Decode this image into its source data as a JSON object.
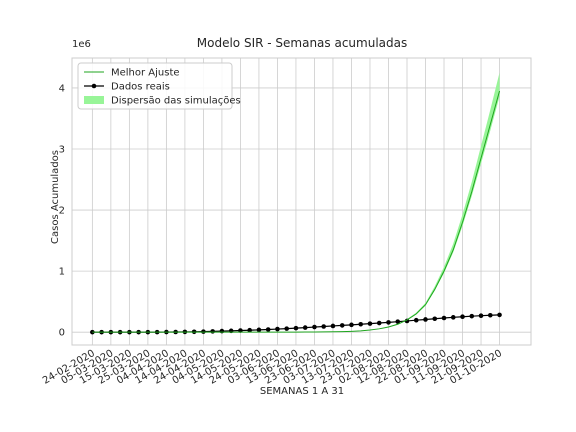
{
  "chart_data": {
    "type": "line",
    "title": "Modelo SIR - Semanas acumuladas",
    "xlabel": "SEMANAS 1 A 31",
    "ylabel": "Casos Acumulados",
    "y_offset_label": "1e6",
    "grid": true,
    "legend": "upper left",
    "xlim": [
      "13-02-2020",
      "18-10-2020"
    ],
    "ylim": [
      -0.21,
      4.49
    ],
    "yticks": [
      0,
      1,
      2,
      3,
      4
    ],
    "xticks": [
      "24-02-2020",
      "05-03-2020",
      "15-03-2020",
      "25-03-2020",
      "04-04-2020",
      "14-04-2020",
      "24-04-2020",
      "04-05-2020",
      "14-05-2020",
      "24-05-2020",
      "03-06-2020",
      "13-06-2020",
      "23-06-2020",
      "03-07-2020",
      "13-07-2020",
      "23-07-2020",
      "02-08-2020",
      "12-08-2020",
      "22-08-2020",
      "01-09-2020",
      "11-09-2020",
      "21-09-2020",
      "01-10-2020"
    ],
    "x": [
      "24-02-2020",
      "29-02-2020",
      "05-03-2020",
      "10-03-2020",
      "15-03-2020",
      "20-03-2020",
      "25-03-2020",
      "30-03-2020",
      "04-04-2020",
      "09-04-2020",
      "14-04-2020",
      "19-04-2020",
      "24-04-2020",
      "29-04-2020",
      "04-05-2020",
      "09-05-2020",
      "14-05-2020",
      "19-05-2020",
      "24-05-2020",
      "29-05-2020",
      "03-06-2020",
      "08-06-2020",
      "13-06-2020",
      "18-06-2020",
      "23-06-2020",
      "28-06-2020",
      "03-07-2020",
      "08-07-2020",
      "13-07-2020",
      "18-07-2020",
      "23-07-2020",
      "28-07-2020",
      "02-08-2020",
      "07-08-2020",
      "12-08-2020",
      "17-08-2020",
      "22-08-2020",
      "27-08-2020",
      "01-09-2020",
      "06-09-2020",
      "11-09-2020",
      "16-09-2020",
      "21-09-2020",
      "26-09-2020",
      "01-10-2020"
    ],
    "series": [
      {
        "name": "Melhor Ajuste",
        "color": "#1fa51f",
        "values": [
          0,
          0,
          0,
          0,
          0,
          0,
          0,
          0,
          0,
          0,
          0,
          0,
          0,
          0,
          0,
          0,
          0,
          0,
          0,
          0,
          0,
          0,
          0.001,
          0.002,
          0.003,
          0.004,
          0.006,
          0.009,
          0.014,
          0.022,
          0.035,
          0.055,
          0.085,
          0.13,
          0.2,
          0.3,
          0.45,
          0.7,
          1.0,
          1.35,
          1.8,
          2.3,
          2.85,
          3.4,
          3.95
        ]
      },
      {
        "name": "Dados reais",
        "color": "#000000",
        "marker": "o",
        "values": [
          0,
          0,
          0,
          0,
          0,
          0,
          0,
          0.001,
          0.002,
          0.003,
          0.004,
          0.006,
          0.009,
          0.013,
          0.018,
          0.022,
          0.027,
          0.032,
          0.038,
          0.044,
          0.051,
          0.058,
          0.066,
          0.075,
          0.084,
          0.093,
          0.102,
          0.111,
          0.12,
          0.13,
          0.14,
          0.15,
          0.16,
          0.172,
          0.184,
          0.196,
          0.208,
          0.22,
          0.232,
          0.243,
          0.253,
          0.262,
          0.27,
          0.277,
          0.283
        ]
      }
    ],
    "band": {
      "name": "Dispersão das simulações",
      "color": "#98f598",
      "lower": [
        0,
        0,
        0,
        0,
        0,
        0,
        0,
        0,
        0,
        0,
        0,
        0,
        0,
        0,
        0,
        0,
        0,
        0,
        0,
        0,
        0,
        0,
        0.001,
        0.002,
        0.003,
        0.004,
        0.006,
        0.009,
        0.014,
        0.021,
        0.034,
        0.053,
        0.082,
        0.125,
        0.193,
        0.29,
        0.435,
        0.68,
        0.97,
        1.31,
        1.74,
        2.23,
        2.76,
        3.3,
        3.86
      ],
      "upper": [
        0,
        0,
        0,
        0,
        0,
        0,
        0,
        0,
        0,
        0,
        0,
        0,
        0,
        0,
        0,
        0,
        0,
        0,
        0,
        0,
        0,
        0,
        0.001,
        0.002,
        0.003,
        0.004,
        0.006,
        0.01,
        0.015,
        0.024,
        0.038,
        0.059,
        0.091,
        0.14,
        0.214,
        0.32,
        0.48,
        0.75,
        1.07,
        1.45,
        1.93,
        2.46,
        3.05,
        3.64,
        4.25
      ]
    }
  }
}
